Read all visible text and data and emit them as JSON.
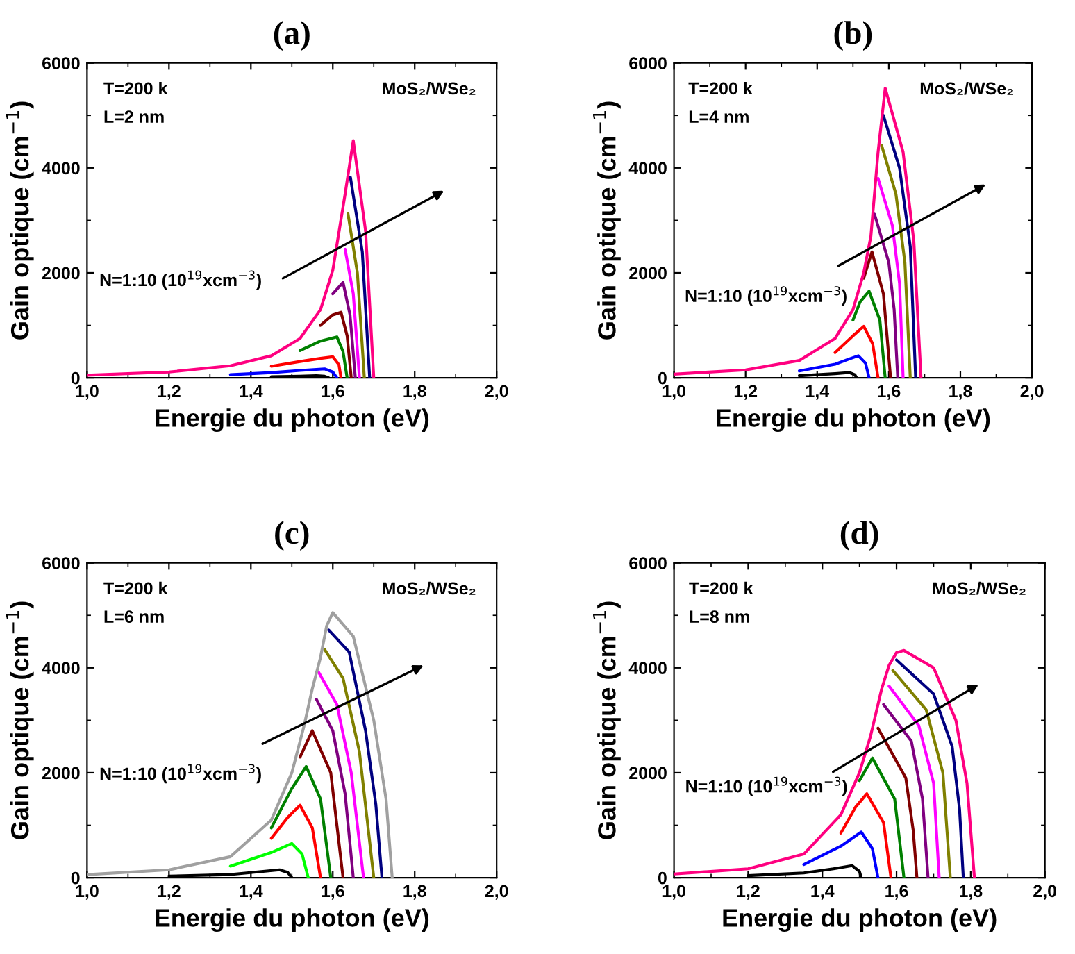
{
  "chart_data": [
    {
      "type": "line",
      "title": "(a)",
      "xlabel": "Energie du photon (eV)",
      "ylabel": "Gain optique (cm$^{−1}$)",
      "xlim": [
        1.0,
        2.0
      ],
      "ylim": [
        0,
        6000
      ],
      "xticks": [
        {
          "value": 1.0,
          "label": "1,0"
        },
        {
          "value": 1.2,
          "label": "1,2"
        },
        {
          "value": 1.4,
          "label": "1,4"
        },
        {
          "value": 1.6,
          "label": "1,6"
        },
        {
          "value": 1.8,
          "label": "1,8"
        },
        {
          "value": 2.0,
          "label": "2,0"
        }
      ],
      "yticks": [
        0,
        2000,
        4000,
        6000
      ],
      "annotations": [
        "T=200 k",
        "L=2 nm",
        "MoS₂/WSe₂",
        "N=1:10 (10$^{19}$xcm$^{−3}$)"
      ],
      "series": [
        {
          "color": "#000000",
          "x": [
            1.45,
            1.52,
            1.56,
            1.58,
            1.59
          ],
          "values": [
            20,
            30,
            40,
            30,
            0
          ]
        },
        {
          "color": "#0000ff",
          "x": [
            1.35,
            1.45,
            1.52,
            1.58,
            1.6,
            1.61
          ],
          "values": [
            60,
            100,
            140,
            170,
            110,
            0
          ]
        },
        {
          "color": "#ff0000",
          "x": [
            1.45,
            1.52,
            1.57,
            1.6,
            1.615,
            1.62
          ],
          "values": [
            220,
            310,
            370,
            400,
            250,
            0
          ]
        },
        {
          "color": "#008000",
          "x": [
            1.52,
            1.57,
            1.61,
            1.625,
            1.635
          ],
          "values": [
            520,
            700,
            780,
            500,
            0
          ]
        },
        {
          "color": "#800000",
          "x": [
            1.57,
            1.6,
            1.62,
            1.635,
            1.645
          ],
          "values": [
            1000,
            1200,
            1250,
            800,
            0
          ]
        },
        {
          "color": "#800080",
          "x": [
            1.6,
            1.625,
            1.642,
            1.655
          ],
          "values": [
            1600,
            1820,
            1200,
            0
          ]
        },
        {
          "color": "#ff00ff",
          "x": [
            1.63,
            1.65,
            1.665
          ],
          "values": [
            2450,
            1600,
            0
          ]
        },
        {
          "color": "#808000",
          "x": [
            1.637,
            1.66,
            1.677
          ],
          "values": [
            3130,
            2000,
            0
          ]
        },
        {
          "color": "#000080",
          "x": [
            1.643,
            1.672,
            1.69
          ],
          "values": [
            3820,
            2400,
            0
          ]
        },
        {
          "color": "#ff0080",
          "x": [
            1.0,
            1.2,
            1.35,
            1.45,
            1.52,
            1.57,
            1.6,
            1.63,
            1.65,
            1.68,
            1.7
          ],
          "values": [
            50,
            110,
            230,
            420,
            750,
            1300,
            2050,
            3500,
            4520,
            2800,
            0
          ]
        }
      ]
    },
    {
      "type": "line",
      "title": "(b)",
      "xlabel": "Energie du photon (eV)",
      "ylabel": "Gain optique (cm$^{−1}$)",
      "xlim": [
        1.0,
        2.0
      ],
      "ylim": [
        0,
        6000
      ],
      "xticks": [
        {
          "value": 1.0,
          "label": "1,0"
        },
        {
          "value": 1.2,
          "label": "1,2"
        },
        {
          "value": 1.4,
          "label": "1,4"
        },
        {
          "value": 1.6,
          "label": "1,6"
        },
        {
          "value": 1.8,
          "label": "1,8"
        },
        {
          "value": 2.0,
          "label": "2,0"
        }
      ],
      "yticks": [
        0,
        2000,
        4000,
        6000
      ],
      "annotations": [
        "T=200 k",
        "L=4 nm",
        "MoS₂/WSe₂",
        "N=1:10 (10$^{19}$xcm$^{−3}$)"
      ],
      "series": [
        {
          "color": "#000000",
          "x": [
            1.35,
            1.45,
            1.49,
            1.505,
            1.51
          ],
          "values": [
            40,
            80,
            100,
            60,
            0
          ]
        },
        {
          "color": "#0000ff",
          "x": [
            1.35,
            1.45,
            1.49,
            1.515,
            1.535,
            1.545
          ],
          "values": [
            130,
            260,
            360,
            420,
            280,
            0
          ]
        },
        {
          "color": "#ff0000",
          "x": [
            1.45,
            1.5,
            1.53,
            1.555,
            1.57
          ],
          "values": [
            480,
            800,
            980,
            650,
            0
          ]
        },
        {
          "color": "#008000",
          "x": [
            1.5,
            1.52,
            1.545,
            1.575,
            1.59
          ],
          "values": [
            1100,
            1450,
            1650,
            1100,
            0
          ]
        },
        {
          "color": "#800000",
          "x": [
            1.53,
            1.553,
            1.585,
            1.605
          ],
          "values": [
            1900,
            2400,
            1600,
            0
          ]
        },
        {
          "color": "#800080",
          "x": [
            1.56,
            1.6,
            1.615,
            1.625
          ],
          "values": [
            3120,
            2200,
            1300,
            0
          ]
        },
        {
          "color": "#ff00ff",
          "x": [
            1.57,
            1.61,
            1.63,
            1.64
          ],
          "values": [
            3800,
            2900,
            1800,
            0
          ]
        },
        {
          "color": "#808000",
          "x": [
            1.58,
            1.62,
            1.645,
            1.66
          ],
          "values": [
            4430,
            3500,
            2200,
            0
          ]
        },
        {
          "color": "#000080",
          "x": [
            1.585,
            1.63,
            1.66,
            1.675
          ],
          "values": [
            5000,
            4000,
            2500,
            0
          ]
        },
        {
          "color": "#ff0080",
          "x": [
            1.0,
            1.2,
            1.35,
            1.45,
            1.5,
            1.53,
            1.55,
            1.57,
            1.59,
            1.64,
            1.67,
            1.69
          ],
          "values": [
            70,
            150,
            330,
            750,
            1300,
            2000,
            2700,
            4300,
            5520,
            4300,
            2600,
            0
          ]
        }
      ]
    },
    {
      "type": "line",
      "title": "(c)",
      "xlabel": "Energie du photon (eV)",
      "ylabel": "Gain optique (cm$^{−1}$)",
      "xlim": [
        1.0,
        2.0
      ],
      "ylim": [
        0,
        6000
      ],
      "xticks": [
        {
          "value": 1.0,
          "label": "1,0"
        },
        {
          "value": 1.2,
          "label": "1,2"
        },
        {
          "value": 1.4,
          "label": "1,4"
        },
        {
          "value": 1.6,
          "label": "1,6"
        },
        {
          "value": 1.8,
          "label": "1,8"
        },
        {
          "value": 2.0,
          "label": "2,0"
        }
      ],
      "yticks": [
        0,
        2000,
        4000,
        6000
      ],
      "annotations": [
        "T=200 k",
        "L=6 nm",
        "MoS₂/WSe₂",
        "N=1:10 (10$^{19}$xcm$^{−3}$)"
      ],
      "series": [
        {
          "color": "#000000",
          "x": [
            1.2,
            1.35,
            1.43,
            1.47,
            1.49,
            1.5
          ],
          "values": [
            30,
            60,
            120,
            150,
            100,
            0
          ]
        },
        {
          "color": "#00ff00",
          "x": [
            1.35,
            1.45,
            1.5,
            1.525,
            1.54
          ],
          "values": [
            220,
            480,
            650,
            450,
            0
          ]
        },
        {
          "color": "#ff0000",
          "x": [
            1.45,
            1.49,
            1.52,
            1.55,
            1.57
          ],
          "values": [
            750,
            1150,
            1380,
            950,
            0
          ]
        },
        {
          "color": "#008000",
          "x": [
            1.45,
            1.5,
            1.535,
            1.57,
            1.595
          ],
          "values": [
            950,
            1700,
            2120,
            1500,
            0
          ]
        },
        {
          "color": "#800000",
          "x": [
            1.52,
            1.55,
            1.595,
            1.625
          ],
          "values": [
            2300,
            2800,
            2000,
            0
          ]
        },
        {
          "color": "#800080",
          "x": [
            1.56,
            1.6,
            1.63,
            1.65
          ],
          "values": [
            3400,
            2800,
            1600,
            0
          ]
        },
        {
          "color": "#ff00ff",
          "x": [
            1.565,
            1.61,
            1.645,
            1.675
          ],
          "values": [
            3920,
            3300,
            2000,
            0
          ]
        },
        {
          "color": "#808000",
          "x": [
            1.58,
            1.625,
            1.665,
            1.7
          ],
          "values": [
            4350,
            3800,
            2400,
            0
          ]
        },
        {
          "color": "#000080",
          "x": [
            1.59,
            1.64,
            1.68,
            1.705,
            1.72
          ],
          "values": [
            4720,
            4300,
            2800,
            1400,
            0
          ]
        },
        {
          "color": "#a0a0a0",
          "x": [
            1.0,
            1.2,
            1.35,
            1.45,
            1.5,
            1.53,
            1.55,
            1.57,
            1.585,
            1.6,
            1.65,
            1.7,
            1.73,
            1.745
          ],
          "values": [
            60,
            150,
            400,
            1100,
            2000,
            2900,
            3600,
            4200,
            4800,
            5050,
            4600,
            3000,
            1500,
            0
          ]
        }
      ]
    },
    {
      "type": "line",
      "title": "(d)",
      "xlabel": "Energie du photon (eV)",
      "ylabel": "Gain optique (cm$^{−1}$)",
      "xlim": [
        1.0,
        2.0
      ],
      "ylim": [
        0,
        6000
      ],
      "xticks": [
        {
          "value": 1.0,
          "label": "1,0"
        },
        {
          "value": 1.2,
          "label": "1,2"
        },
        {
          "value": 1.4,
          "label": "1,4"
        },
        {
          "value": 1.6,
          "label": "1,6"
        },
        {
          "value": 1.8,
          "label": "1,8"
        },
        {
          "value": 2.0,
          "label": "2,0"
        }
      ],
      "yticks": [
        0,
        2000,
        4000,
        6000
      ],
      "annotations": [
        "T=200 k",
        "L=8 nm",
        "MoS₂/WSe₂",
        "N=1:10 (10$^{19}$xcm$^{−3}$)"
      ],
      "series": [
        {
          "color": "#000000",
          "x": [
            1.2,
            1.35,
            1.43,
            1.48,
            1.5,
            1.505
          ],
          "values": [
            40,
            90,
            170,
            230,
            120,
            0
          ]
        },
        {
          "color": "#0000ff",
          "x": [
            1.35,
            1.45,
            1.505,
            1.535,
            1.55
          ],
          "values": [
            250,
            600,
            870,
            550,
            0
          ]
        },
        {
          "color": "#ff0000",
          "x": [
            1.45,
            1.49,
            1.52,
            1.565,
            1.585
          ],
          "values": [
            850,
            1350,
            1600,
            1050,
            0
          ]
        },
        {
          "color": "#008000",
          "x": [
            1.5,
            1.535,
            1.595,
            1.62
          ],
          "values": [
            1850,
            2280,
            1500,
            0
          ]
        },
        {
          "color": "#800000",
          "x": [
            1.55,
            1.625,
            1.645,
            1.655
          ],
          "values": [
            2850,
            1900,
            900,
            0
          ]
        },
        {
          "color": "#800080",
          "x": [
            1.565,
            1.64,
            1.67,
            1.685
          ],
          "values": [
            3300,
            2600,
            1500,
            0
          ]
        },
        {
          "color": "#ff00ff",
          "x": [
            1.58,
            1.66,
            1.7,
            1.715
          ],
          "values": [
            3650,
            2900,
            1800,
            0
          ]
        },
        {
          "color": "#808000",
          "x": [
            1.59,
            1.68,
            1.725,
            1.745
          ],
          "values": [
            3950,
            3200,
            2000,
            0
          ]
        },
        {
          "color": "#000080",
          "x": [
            1.6,
            1.7,
            1.75,
            1.77,
            1.78
          ],
          "values": [
            4150,
            3500,
            2500,
            1300,
            0
          ]
        },
        {
          "color": "#ff0080",
          "x": [
            1.0,
            1.2,
            1.35,
            1.45,
            1.5,
            1.53,
            1.56,
            1.58,
            1.6,
            1.62,
            1.7,
            1.76,
            1.79,
            1.81
          ],
          "values": [
            70,
            170,
            450,
            1200,
            2000,
            2700,
            3600,
            4050,
            4290,
            4330,
            4000,
            3000,
            1800,
            0
          ]
        }
      ]
    }
  ]
}
